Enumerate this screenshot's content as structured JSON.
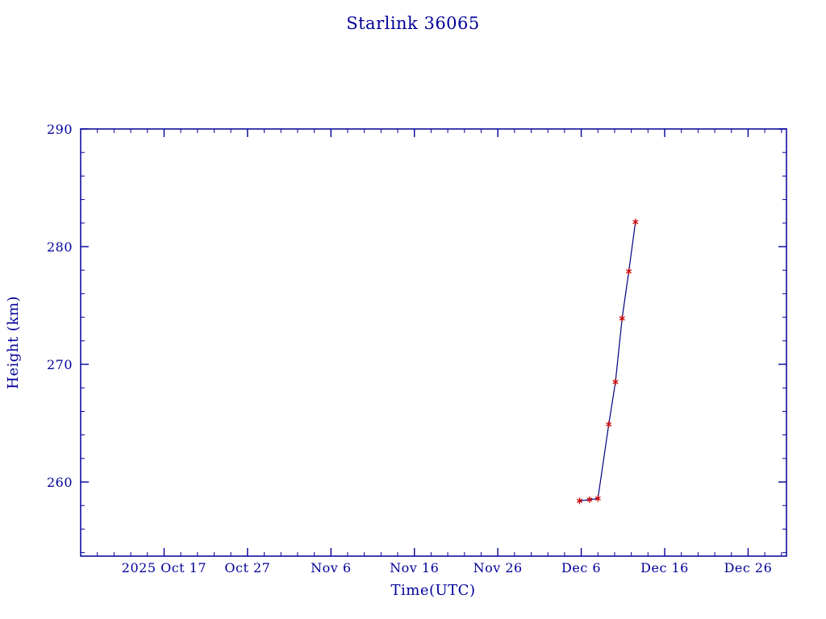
{
  "page": {
    "background": "#ffffff"
  },
  "chart_data": {
    "type": "line",
    "title": "Starlink 36065",
    "xlabel": "Time(UTC)",
    "ylabel": "Height (km)",
    "text_color": "#000099",
    "axis_color": "#000099",
    "line_color": "#000080",
    "marker": "asterisk",
    "marker_color": "#cc0000",
    "grid": false,
    "legend": "none",
    "x_axis": {
      "unit": "days since 2025-10-07 (UTC)",
      "range": [
        0,
        84.6
      ],
      "major_ticks": [
        {
          "day": 10,
          "label": "2025 Oct 17"
        },
        {
          "day": 20,
          "label": "Oct 27"
        },
        {
          "day": 30,
          "label": "Nov 6"
        },
        {
          "day": 40,
          "label": "Nov 16"
        },
        {
          "day": 50,
          "label": "Nov 26"
        },
        {
          "day": 60,
          "label": "Dec 6"
        },
        {
          "day": 70,
          "label": "Dec 16"
        },
        {
          "day": 80,
          "label": "Dec 26"
        }
      ],
      "minor_tick_step_days": 2
    },
    "y_axis": {
      "range": [
        253.7,
        290
      ],
      "major_ticks": [
        260,
        270,
        280,
        290
      ],
      "minor_tick_step": 2
    },
    "series": [
      {
        "name": "Starlink 36065 height",
        "points": [
          {
            "day": 59.8,
            "date": "2025 Dec 6",
            "height_km": 258.4
          },
          {
            "day": 61.0,
            "date": "2025 Dec 7",
            "height_km": 258.5
          },
          {
            "day": 62.0,
            "date": "2025 Dec 8",
            "height_km": 258.6
          },
          {
            "day": 63.3,
            "date": "2025 Dec 9",
            "height_km": 264.9
          },
          {
            "day": 64.1,
            "date": "2025 Dec 10",
            "height_km": 268.5
          },
          {
            "day": 64.9,
            "date": "2025 Dec 11",
            "height_km": 273.9
          },
          {
            "day": 65.7,
            "date": "2025 Dec 12",
            "height_km": 277.9
          },
          {
            "day": 66.5,
            "date": "2025 Dec 12",
            "height_km": 282.1
          }
        ]
      }
    ]
  }
}
